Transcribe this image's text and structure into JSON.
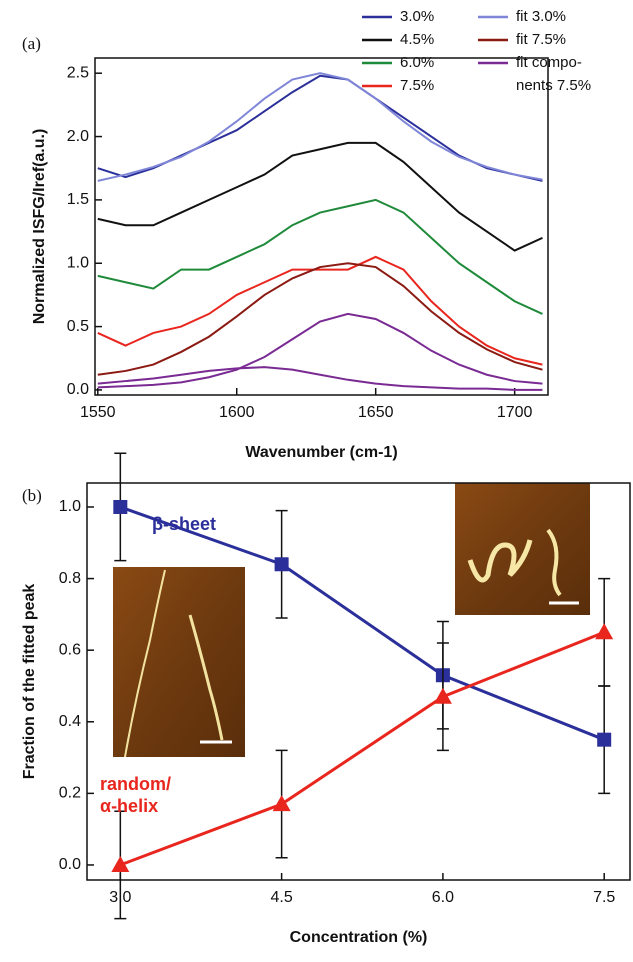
{
  "chart_data": [
    {
      "type": "line",
      "label": "(a)",
      "xlabel": "Wavenumber (cm-1)",
      "ylabel": "Normalized ISFG/Iref(a.u.)",
      "x": [
        1550,
        1560,
        1570,
        1580,
        1590,
        1600,
        1610,
        1620,
        1630,
        1640,
        1650,
        1660,
        1670,
        1680,
        1690,
        1700,
        1710
      ],
      "xlim": [
        1549,
        1712
      ],
      "xticks": [
        1550,
        1600,
        1650,
        1700
      ],
      "ylim": [
        -0.04,
        2.62
      ],
      "yticks": [
        {
          "value": 0,
          "label": "0.0"
        },
        0.5,
        {
          "value": 1,
          "label": "1.0"
        },
        1.5,
        {
          "value": 2,
          "label": "2.0"
        },
        2.5
      ],
      "series": [
        {
          "name": "3.0%",
          "color": "#2b2f9a",
          "values": [
            1.75,
            1.68,
            1.75,
            1.85,
            1.95,
            2.05,
            2.2,
            2.35,
            2.48,
            2.45,
            2.3,
            2.15,
            2.0,
            1.85,
            1.75,
            1.7,
            1.65
          ]
        },
        {
          "name": "4.5%",
          "color": "#111111",
          "values": [
            1.35,
            1.3,
            1.3,
            1.4,
            1.5,
            1.6,
            1.7,
            1.85,
            1.9,
            1.95,
            1.95,
            1.8,
            1.6,
            1.4,
            1.25,
            1.1,
            1.2
          ]
        },
        {
          "name": "6.0%",
          "color": "#1f8a3a",
          "values": [
            0.9,
            0.85,
            0.8,
            0.95,
            0.95,
            1.05,
            1.15,
            1.3,
            1.4,
            1.45,
            1.5,
            1.4,
            1.2,
            1.0,
            0.85,
            0.7,
            0.6
          ]
        },
        {
          "name": "7.5%",
          "color": "#e8261e",
          "values": [
            0.45,
            0.35,
            0.45,
            0.5,
            0.6,
            0.75,
            0.85,
            0.95,
            0.95,
            0.95,
            1.05,
            0.95,
            0.7,
            0.5,
            0.35,
            0.25,
            0.2
          ]
        },
        {
          "name": "fit 3.0%",
          "color": "#7f86d8",
          "values": [
            1.65,
            1.7,
            1.76,
            1.84,
            1.96,
            2.12,
            2.3,
            2.45,
            2.5,
            2.45,
            2.3,
            2.12,
            1.96,
            1.84,
            1.76,
            1.7,
            1.66
          ]
        },
        {
          "name": "fit 7.5%",
          "color": "#8b1a12",
          "values": [
            0.12,
            0.15,
            0.2,
            0.3,
            0.42,
            0.58,
            0.75,
            0.88,
            0.97,
            1.0,
            0.97,
            0.82,
            0.62,
            0.45,
            0.32,
            0.22,
            0.16
          ]
        },
        {
          "name": "fit compo-\nnents 7.5%",
          "color": "#7a2a93",
          "values": [
            0.02,
            0.03,
            0.04,
            0.06,
            0.1,
            0.16,
            0.26,
            0.4,
            0.54,
            0.6,
            0.56,
            0.45,
            0.31,
            0.2,
            0.12,
            0.07,
            0.05
          ]
        },
        {
          "color": "#7a2a93",
          "values": [
            0.05,
            0.07,
            0.09,
            0.12,
            0.15,
            0.17,
            0.18,
            0.16,
            0.12,
            0.08,
            0.05,
            0.03,
            0.02,
            0.01,
            0.01,
            0.0,
            0.0
          ]
        }
      ]
    },
    {
      "type": "errorline",
      "label": "(b)",
      "xlabel": "Concentration (%)",
      "ylabel": "Fraction of the fitted peak",
      "x": [
        3,
        4.5,
        6,
        7.5
      ],
      "xlim": [
        2.69,
        7.74
      ],
      "xticks": [
        {
          "value": 3,
          "label": "3.0"
        },
        4.5,
        {
          "value": 6,
          "label": "6.0"
        },
        7.5
      ],
      "ylim": [
        -0.042,
        1.067
      ],
      "yticks": [
        {
          "value": 0,
          "label": "0.0"
        },
        0.2,
        0.4,
        0.6,
        0.8,
        {
          "value": 1,
          "label": "1.0"
        }
      ],
      "series": [
        {
          "name": "β-sheet",
          "color": "#2b2f9a",
          "marker": "square",
          "values": [
            1.0,
            0.84,
            0.53,
            0.35
          ],
          "errors": [
            0.15,
            0.15,
            0.15,
            0.15
          ]
        },
        {
          "name": "random/\nα-helix",
          "color": "#e8261e",
          "marker": "triangle",
          "values": [
            0,
            0.17,
            0.47,
            0.65
          ],
          "errors": [
            0.15,
            0.15,
            0.15,
            0.15
          ]
        }
      ]
    }
  ]
}
